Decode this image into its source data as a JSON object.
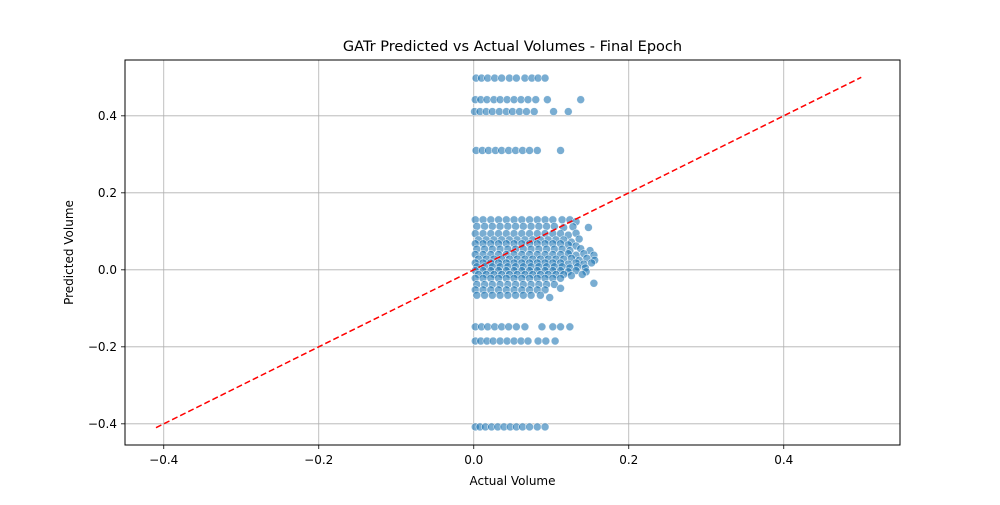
{
  "chart_data": {
    "type": "scatter",
    "title": "GATr Predicted vs Actual Volumes - Final Epoch",
    "xlabel": "Actual Volume",
    "ylabel": "Predicted Volume",
    "xlim": [
      -0.45,
      0.55
    ],
    "ylim": [
      -0.455,
      0.545
    ],
    "xticks": [
      -0.4,
      -0.2,
      0.0,
      0.2,
      0.4
    ],
    "xtick_labels": [
      "−0.4",
      "−0.2",
      "0.0",
      "0.2",
      "0.4"
    ],
    "yticks": [
      -0.4,
      -0.2,
      0.0,
      0.2,
      0.4
    ],
    "ytick_labels": [
      "−0.4",
      "−0.2",
      "0.0",
      "0.2",
      "0.4"
    ],
    "grid": true,
    "point_color": "#1f77b4",
    "reference_line": {
      "x": [
        -0.41,
        0.5
      ],
      "y": [
        -0.41,
        0.5
      ],
      "color": "#ff0000",
      "style": "dashed"
    },
    "points": [
      [
        0.003,
        0.498
      ],
      [
        0.01,
        0.498
      ],
      [
        0.018,
        0.498
      ],
      [
        0.027,
        0.498
      ],
      [
        0.036,
        0.498
      ],
      [
        0.046,
        0.498
      ],
      [
        0.055,
        0.498
      ],
      [
        0.066,
        0.498
      ],
      [
        0.075,
        0.498
      ],
      [
        0.083,
        0.498
      ],
      [
        0.092,
        0.498
      ],
      [
        0.002,
        0.442
      ],
      [
        0.009,
        0.442
      ],
      [
        0.017,
        0.442
      ],
      [
        0.026,
        0.442
      ],
      [
        0.034,
        0.442
      ],
      [
        0.043,
        0.442
      ],
      [
        0.052,
        0.442
      ],
      [
        0.061,
        0.442
      ],
      [
        0.07,
        0.442
      ],
      [
        0.08,
        0.442
      ],
      [
        0.095,
        0.442
      ],
      [
        0.138,
        0.442
      ],
      [
        0.001,
        0.411
      ],
      [
        0.008,
        0.411
      ],
      [
        0.016,
        0.411
      ],
      [
        0.024,
        0.411
      ],
      [
        0.033,
        0.411
      ],
      [
        0.042,
        0.411
      ],
      [
        0.05,
        0.411
      ],
      [
        0.059,
        0.411
      ],
      [
        0.068,
        0.411
      ],
      [
        0.078,
        0.411
      ],
      [
        0.103,
        0.411
      ],
      [
        0.122,
        0.411
      ],
      [
        0.003,
        0.31
      ],
      [
        0.011,
        0.31
      ],
      [
        0.019,
        0.31
      ],
      [
        0.028,
        0.31
      ],
      [
        0.036,
        0.31
      ],
      [
        0.045,
        0.31
      ],
      [
        0.054,
        0.31
      ],
      [
        0.063,
        0.31
      ],
      [
        0.072,
        0.31
      ],
      [
        0.082,
        0.31
      ],
      [
        0.112,
        0.31
      ],
      [
        0.002,
        -0.148
      ],
      [
        0.01,
        -0.148
      ],
      [
        0.018,
        -0.148
      ],
      [
        0.027,
        -0.148
      ],
      [
        0.036,
        -0.148
      ],
      [
        0.045,
        -0.148
      ],
      [
        0.055,
        -0.148
      ],
      [
        0.066,
        -0.148
      ],
      [
        0.088,
        -0.148
      ],
      [
        0.102,
        -0.148
      ],
      [
        0.112,
        -0.148
      ],
      [
        0.124,
        -0.148
      ],
      [
        0.002,
        -0.185
      ],
      [
        0.009,
        -0.185
      ],
      [
        0.017,
        -0.185
      ],
      [
        0.025,
        -0.185
      ],
      [
        0.034,
        -0.185
      ],
      [
        0.043,
        -0.185
      ],
      [
        0.052,
        -0.185
      ],
      [
        0.061,
        -0.185
      ],
      [
        0.07,
        -0.185
      ],
      [
        0.083,
        -0.185
      ],
      [
        0.093,
        -0.185
      ],
      [
        0.105,
        -0.185
      ],
      [
        0.002,
        -0.408
      ],
      [
        0.008,
        -0.408
      ],
      [
        0.015,
        -0.408
      ],
      [
        0.023,
        -0.408
      ],
      [
        0.031,
        -0.408
      ],
      [
        0.039,
        -0.408
      ],
      [
        0.047,
        -0.408
      ],
      [
        0.055,
        -0.408
      ],
      [
        0.063,
        -0.408
      ],
      [
        0.072,
        -0.408
      ],
      [
        0.082,
        -0.408
      ],
      [
        0.092,
        -0.408
      ],
      [
        0.002,
        0.13
      ],
      [
        0.012,
        0.13
      ],
      [
        0.022,
        0.13
      ],
      [
        0.032,
        0.13
      ],
      [
        0.042,
        0.13
      ],
      [
        0.052,
        0.13
      ],
      [
        0.062,
        0.13
      ],
      [
        0.072,
        0.13
      ],
      [
        0.082,
        0.13
      ],
      [
        0.092,
        0.13
      ],
      [
        0.102,
        0.13
      ],
      [
        0.114,
        0.13
      ],
      [
        0.124,
        0.13
      ],
      [
        0.132,
        0.125
      ],
      [
        0.004,
        0.113
      ],
      [
        0.014,
        0.113
      ],
      [
        0.024,
        0.113
      ],
      [
        0.034,
        0.113
      ],
      [
        0.044,
        0.113
      ],
      [
        0.054,
        0.113
      ],
      [
        0.064,
        0.113
      ],
      [
        0.074,
        0.113
      ],
      [
        0.084,
        0.113
      ],
      [
        0.094,
        0.113
      ],
      [
        0.104,
        0.113
      ],
      [
        0.116,
        0.11
      ],
      [
        0.128,
        0.112
      ],
      [
        0.148,
        0.11
      ],
      [
        0.002,
        0.094
      ],
      [
        0.012,
        0.094
      ],
      [
        0.022,
        0.094
      ],
      [
        0.032,
        0.094
      ],
      [
        0.042,
        0.094
      ],
      [
        0.052,
        0.094
      ],
      [
        0.062,
        0.094
      ],
      [
        0.072,
        0.094
      ],
      [
        0.082,
        0.094
      ],
      [
        0.092,
        0.094
      ],
      [
        0.102,
        0.094
      ],
      [
        0.112,
        0.094
      ],
      [
        0.122,
        0.09
      ],
      [
        0.132,
        0.095
      ],
      [
        0.006,
        0.078
      ],
      [
        0.016,
        0.078
      ],
      [
        0.026,
        0.078
      ],
      [
        0.036,
        0.078
      ],
      [
        0.046,
        0.078
      ],
      [
        0.056,
        0.078
      ],
      [
        0.066,
        0.078
      ],
      [
        0.076,
        0.078
      ],
      [
        0.086,
        0.078
      ],
      [
        0.096,
        0.078
      ],
      [
        0.106,
        0.078
      ],
      [
        0.116,
        0.078
      ],
      [
        0.126,
        0.072
      ],
      [
        0.136,
        0.08
      ],
      [
        0.002,
        0.068
      ],
      [
        0.012,
        0.068
      ],
      [
        0.022,
        0.068
      ],
      [
        0.032,
        0.068
      ],
      [
        0.042,
        0.068
      ],
      [
        0.052,
        0.068
      ],
      [
        0.062,
        0.068
      ],
      [
        0.072,
        0.068
      ],
      [
        0.082,
        0.068
      ],
      [
        0.092,
        0.068
      ],
      [
        0.102,
        0.068
      ],
      [
        0.112,
        0.068
      ],
      [
        0.122,
        0.065
      ],
      [
        0.132,
        0.062
      ],
      [
        0.004,
        0.054
      ],
      [
        0.014,
        0.054
      ],
      [
        0.024,
        0.054
      ],
      [
        0.034,
        0.054
      ],
      [
        0.044,
        0.054
      ],
      [
        0.054,
        0.054
      ],
      [
        0.064,
        0.054
      ],
      [
        0.074,
        0.054
      ],
      [
        0.084,
        0.054
      ],
      [
        0.094,
        0.054
      ],
      [
        0.104,
        0.054
      ],
      [
        0.114,
        0.054
      ],
      [
        0.124,
        0.05
      ],
      [
        0.138,
        0.055
      ],
      [
        0.15,
        0.05
      ],
      [
        0.002,
        0.04
      ],
      [
        0.012,
        0.04
      ],
      [
        0.022,
        0.04
      ],
      [
        0.032,
        0.04
      ],
      [
        0.042,
        0.04
      ],
      [
        0.052,
        0.04
      ],
      [
        0.062,
        0.04
      ],
      [
        0.072,
        0.04
      ],
      [
        0.082,
        0.04
      ],
      [
        0.092,
        0.04
      ],
      [
        0.102,
        0.04
      ],
      [
        0.112,
        0.04
      ],
      [
        0.122,
        0.042
      ],
      [
        0.132,
        0.038
      ],
      [
        0.142,
        0.042
      ],
      [
        0.155,
        0.038
      ],
      [
        0.006,
        0.028
      ],
      [
        0.016,
        0.028
      ],
      [
        0.026,
        0.028
      ],
      [
        0.036,
        0.028
      ],
      [
        0.046,
        0.028
      ],
      [
        0.056,
        0.028
      ],
      [
        0.066,
        0.028
      ],
      [
        0.076,
        0.028
      ],
      [
        0.086,
        0.028
      ],
      [
        0.096,
        0.028
      ],
      [
        0.106,
        0.028
      ],
      [
        0.116,
        0.028
      ],
      [
        0.126,
        0.03
      ],
      [
        0.136,
        0.025
      ],
      [
        0.146,
        0.03
      ],
      [
        0.156,
        0.025
      ],
      [
        0.002,
        0.018
      ],
      [
        0.012,
        0.018
      ],
      [
        0.022,
        0.018
      ],
      [
        0.032,
        0.018
      ],
      [
        0.042,
        0.018
      ],
      [
        0.052,
        0.018
      ],
      [
        0.062,
        0.018
      ],
      [
        0.072,
        0.018
      ],
      [
        0.082,
        0.018
      ],
      [
        0.092,
        0.018
      ],
      [
        0.102,
        0.018
      ],
      [
        0.112,
        0.018
      ],
      [
        0.122,
        0.015
      ],
      [
        0.132,
        0.018
      ],
      [
        0.142,
        0.015
      ],
      [
        0.152,
        0.018
      ],
      [
        0.004,
        0.008
      ],
      [
        0.014,
        0.008
      ],
      [
        0.024,
        0.008
      ],
      [
        0.034,
        0.008
      ],
      [
        0.044,
        0.008
      ],
      [
        0.054,
        0.008
      ],
      [
        0.064,
        0.008
      ],
      [
        0.074,
        0.008
      ],
      [
        0.084,
        0.008
      ],
      [
        0.094,
        0.008
      ],
      [
        0.104,
        0.008
      ],
      [
        0.114,
        0.008
      ],
      [
        0.124,
        0.005
      ],
      [
        0.134,
        0.008
      ],
      [
        0.144,
        0.005
      ],
      [
        0.002,
        -0.002
      ],
      [
        0.012,
        -0.002
      ],
      [
        0.022,
        -0.002
      ],
      [
        0.032,
        -0.002
      ],
      [
        0.042,
        -0.002
      ],
      [
        0.052,
        -0.002
      ],
      [
        0.062,
        -0.002
      ],
      [
        0.072,
        -0.002
      ],
      [
        0.082,
        -0.002
      ],
      [
        0.092,
        -0.002
      ],
      [
        0.102,
        -0.002
      ],
      [
        0.112,
        -0.002
      ],
      [
        0.122,
        -0.005
      ],
      [
        0.132,
        -0.002
      ],
      [
        0.145,
        -0.005
      ],
      [
        0.006,
        -0.012
      ],
      [
        0.016,
        -0.012
      ],
      [
        0.026,
        -0.012
      ],
      [
        0.036,
        -0.012
      ],
      [
        0.046,
        -0.012
      ],
      [
        0.056,
        -0.012
      ],
      [
        0.066,
        -0.012
      ],
      [
        0.076,
        -0.012
      ],
      [
        0.086,
        -0.012
      ],
      [
        0.096,
        -0.012
      ],
      [
        0.106,
        -0.012
      ],
      [
        0.116,
        -0.012
      ],
      [
        0.126,
        -0.015
      ],
      [
        0.14,
        -0.012
      ],
      [
        0.002,
        -0.022
      ],
      [
        0.012,
        -0.022
      ],
      [
        0.022,
        -0.022
      ],
      [
        0.032,
        -0.022
      ],
      [
        0.042,
        -0.022
      ],
      [
        0.052,
        -0.022
      ],
      [
        0.062,
        -0.022
      ],
      [
        0.072,
        -0.022
      ],
      [
        0.082,
        -0.022
      ],
      [
        0.092,
        -0.022
      ],
      [
        0.102,
        -0.022
      ],
      [
        0.112,
        -0.022
      ],
      [
        0.155,
        -0.035
      ],
      [
        0.004,
        -0.038
      ],
      [
        0.014,
        -0.038
      ],
      [
        0.024,
        -0.038
      ],
      [
        0.034,
        -0.038
      ],
      [
        0.044,
        -0.038
      ],
      [
        0.054,
        -0.038
      ],
      [
        0.064,
        -0.038
      ],
      [
        0.074,
        -0.038
      ],
      [
        0.084,
        -0.038
      ],
      [
        0.094,
        -0.038
      ],
      [
        0.104,
        -0.038
      ],
      [
        0.002,
        -0.052
      ],
      [
        0.012,
        -0.052
      ],
      [
        0.022,
        -0.052
      ],
      [
        0.032,
        -0.052
      ],
      [
        0.042,
        -0.052
      ],
      [
        0.052,
        -0.052
      ],
      [
        0.062,
        -0.052
      ],
      [
        0.072,
        -0.052
      ],
      [
        0.082,
        -0.052
      ],
      [
        0.092,
        -0.052
      ],
      [
        0.112,
        -0.048
      ],
      [
        0.004,
        -0.066
      ],
      [
        0.014,
        -0.066
      ],
      [
        0.024,
        -0.066
      ],
      [
        0.034,
        -0.066
      ],
      [
        0.044,
        -0.066
      ],
      [
        0.054,
        -0.066
      ],
      [
        0.064,
        -0.066
      ],
      [
        0.074,
        -0.066
      ],
      [
        0.086,
        -0.066
      ],
      [
        0.098,
        -0.072
      ]
    ]
  }
}
